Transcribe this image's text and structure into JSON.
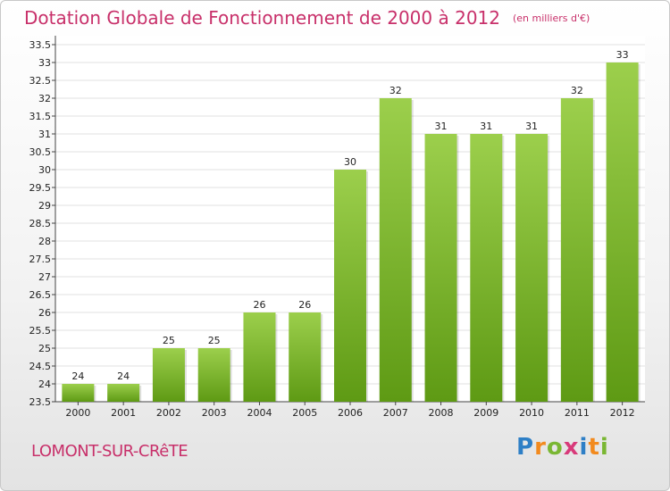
{
  "chart_data": {
    "type": "bar",
    "title": "Dotation Globale de Fonctionnement de 2000 à 2012",
    "subtitle": "(en milliers d'€)",
    "categories": [
      "2000",
      "2001",
      "2002",
      "2003",
      "2004",
      "2005",
      "2006",
      "2007",
      "2008",
      "2009",
      "2010",
      "2011",
      "2012"
    ],
    "values": [
      24,
      24,
      25,
      25,
      26,
      26,
      30,
      32,
      31,
      31,
      31,
      32,
      33
    ],
    "value_labels": [
      "24",
      "24",
      "25",
      "25",
      "26",
      "26",
      "30",
      "32",
      "31",
      "31",
      "31",
      "32",
      "33"
    ],
    "ylim": [
      23.5,
      33.5
    ],
    "yticks": [
      "23.5",
      "24",
      "24.5",
      "25",
      "25.5",
      "26",
      "26.5",
      "27",
      "27.5",
      "28",
      "28.5",
      "29",
      "29.5",
      "30",
      "30.5",
      "31",
      "31.5",
      "32",
      "32.5",
      "33",
      "33.5"
    ],
    "xlabel": "",
    "ylabel": "",
    "grid": true,
    "colors": {
      "bar_top": "#9ccf4c",
      "bar_bottom": "#5e9a14",
      "grid": "#e0e0e0"
    }
  },
  "footer": {
    "commune": "LOMONT-SUR-CRêTE",
    "logo_letters": [
      "P",
      "r",
      "o",
      "x",
      "i",
      "t",
      "i"
    ],
    "logo_colors": [
      "#2e7fc6",
      "#f28a1e",
      "#7ab733",
      "#d83a7a",
      "#2e7fc6",
      "#f28a1e",
      "#7ab733"
    ]
  }
}
